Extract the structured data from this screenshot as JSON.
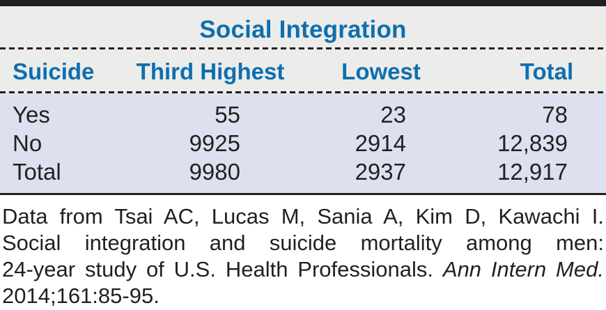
{
  "table": {
    "span_header": "Social Integration",
    "columns": [
      "Suicide",
      "Third Highest",
      "Lowest",
      "Total"
    ],
    "rows": [
      {
        "label": "Yes",
        "third_highest": "55",
        "lowest": "23",
        "total": "78"
      },
      {
        "label": "No",
        "third_highest": "9925",
        "lowest": "2914",
        "total": "12,839"
      },
      {
        "label": "Total",
        "third_highest": "9980",
        "lowest": "2937",
        "total": "12,917"
      }
    ]
  },
  "caption": {
    "lines": [
      {
        "text": "Data from Tsai AC, Lucas M, Sania A, Kim D, Kawachi I."
      },
      {
        "text": "Social integration and suicide mortality among men:"
      },
      {
        "text": "24-year study of U.S. Health Professionals.",
        "italic_text": "Ann Intern Med."
      },
      {
        "text": "2014;161:85-95."
      }
    ]
  },
  "colors": {
    "accent_blue": "#0E6FAE",
    "header_background": "#ECECEB",
    "data_background": "#DDE0EE",
    "rule_black": "#231F20",
    "text_dark": "#231F20"
  },
  "chart_data": {
    "type": "table",
    "title": "Social Integration",
    "row_dimension": "Suicide",
    "columns": [
      "Third Highest",
      "Lowest",
      "Total"
    ],
    "rows": [
      {
        "label": "Yes",
        "values": [
          55,
          23,
          78
        ]
      },
      {
        "label": "No",
        "values": [
          9925,
          2914,
          12839
        ]
      },
      {
        "label": "Total",
        "values": [
          9980,
          2937,
          12917
        ]
      }
    ],
    "caption": "Data from Tsai AC, Lucas M, Sania A, Kim D, Kawachi I. Social integration and suicide mortality among men: 24-year study of U.S. Health Professionals. Ann Intern Med. 2014;161:85-95."
  }
}
